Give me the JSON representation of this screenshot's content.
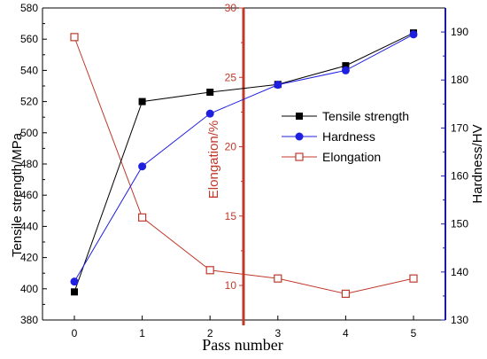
{
  "chart_data": {
    "type": "line",
    "xlabel": "Pass number",
    "x": [
      0,
      1,
      2,
      3,
      4,
      5
    ],
    "axes": {
      "left": {
        "label": "Tensile strength/MPa",
        "range": [
          380,
          580
        ],
        "ticks": [
          380,
          400,
          420,
          440,
          460,
          480,
          500,
          520,
          540,
          560,
          580
        ],
        "color": "#000000"
      },
      "right": {
        "label": "Hardness/HV",
        "range": [
          130,
          195
        ],
        "ticks": [
          130,
          140,
          150,
          160,
          170,
          180,
          190
        ],
        "color": "#1a1aa8"
      },
      "middle": {
        "label": "Elongation/%",
        "range": [
          5,
          30
        ],
        "ticks": [
          10,
          15,
          20,
          25,
          30
        ],
        "color": "#c0392b"
      }
    },
    "series": [
      {
        "name": "Tensile strength",
        "axis": "left",
        "color": "#000000",
        "marker": "filled-square",
        "values": [
          398,
          520,
          526,
          531,
          543,
          564
        ]
      },
      {
        "name": "Hardness",
        "axis": "right",
        "color": "#1f1fe0",
        "marker": "filled-circle",
        "values": [
          138,
          162,
          173,
          179,
          182,
          189.5
        ]
      },
      {
        "name": "Elongation",
        "axis": "middle",
        "color": "#c0392b",
        "marker": "open-square",
        "values": [
          27.9,
          14.9,
          11.1,
          10.5,
          9.4,
          10.5
        ]
      }
    ],
    "legend_position": "center-right",
    "grid": false
  }
}
